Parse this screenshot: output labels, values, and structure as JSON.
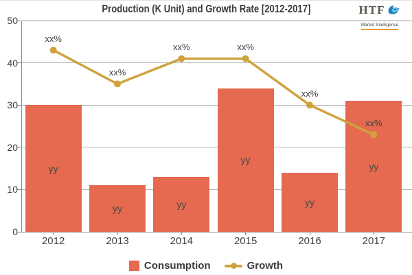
{
  "title_bar": {
    "title": "Production (K Unit) and Growth Rate [2012-2017]"
  },
  "logo": {
    "name": "HTF",
    "tagline": "Market Intelligence"
  },
  "chart_data": {
    "type": "combo-bar-line",
    "title": "Production (K Unit) and Growth Rate [2012-2017]",
    "categories": [
      "2012",
      "2013",
      "2014",
      "2015",
      "2016",
      "2017"
    ],
    "series": [
      {
        "name": "Consumption",
        "type": "bar",
        "values": [
          30,
          11,
          13,
          34,
          14,
          31
        ],
        "data_labels": [
          "yy",
          "yy",
          "yy",
          "yy",
          "yy",
          "yy"
        ],
        "color": "#e56a4f"
      },
      {
        "name": "Growth",
        "type": "line",
        "values": [
          43,
          35,
          41,
          41,
          30,
          23
        ],
        "data_labels": [
          "xx%",
          "xx%",
          "xx%",
          "xx%",
          "xx%",
          "xx%"
        ],
        "color": "#d0a23e"
      }
    ],
    "xlabel": "",
    "ylabel": "",
    "ylim": [
      0,
      50
    ],
    "yticks": [
      0,
      10,
      20,
      30,
      40,
      50
    ],
    "grid": true,
    "legend_position": "bottom",
    "colors": {
      "bar": "#e56a4f",
      "line": "#d0a23e",
      "text": "#3f3f3f",
      "gridline": "#b3b3b3",
      "axis": "#8c8c8c"
    }
  }
}
